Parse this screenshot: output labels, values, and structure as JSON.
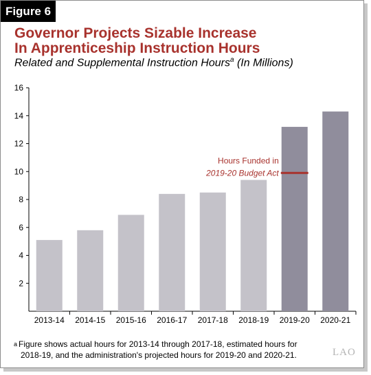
{
  "figure_label": "Figure 6",
  "title_line1": "Governor Projects Sizable Increase",
  "title_line2": "In Apprenticeship Instruction Hours",
  "subtitle_main": "Related and Supplemental Instruction Hours",
  "subtitle_sup": "a",
  "subtitle_units": " (In Millions)",
  "footnote_mark": "a",
  "footnote_line1": "Figure shows actual hours for 2013-14 through 2017-18, estimated hours for",
  "footnote_line2": "2018-19, and the administration's projected hours for 2019-20 and 2020-21.",
  "logo_text": "LAO",
  "colors": {
    "title": "#a8322d",
    "bar_actual": "#c4c2c9",
    "bar_projected": "#908d9c",
    "annotation": "#a8322d"
  },
  "chart_data": {
    "type": "bar",
    "categories": [
      "2013-14",
      "2014-15",
      "2015-16",
      "2016-17",
      "2017-18",
      "2018-19",
      "2019-20",
      "2020-21"
    ],
    "values": [
      5.1,
      5.8,
      6.9,
      8.4,
      8.5,
      9.4,
      13.2,
      14.3
    ],
    "projected": [
      false,
      false,
      false,
      false,
      false,
      false,
      true,
      true
    ],
    "ylim": [
      0,
      16
    ],
    "yticks": [
      2,
      4,
      6,
      8,
      10,
      12,
      14,
      16
    ],
    "grid": false,
    "annotation": {
      "line1": "Hours Funded in",
      "line2": "2019-20 Budget Act",
      "value": 9.9,
      "category": "2019-20"
    }
  }
}
